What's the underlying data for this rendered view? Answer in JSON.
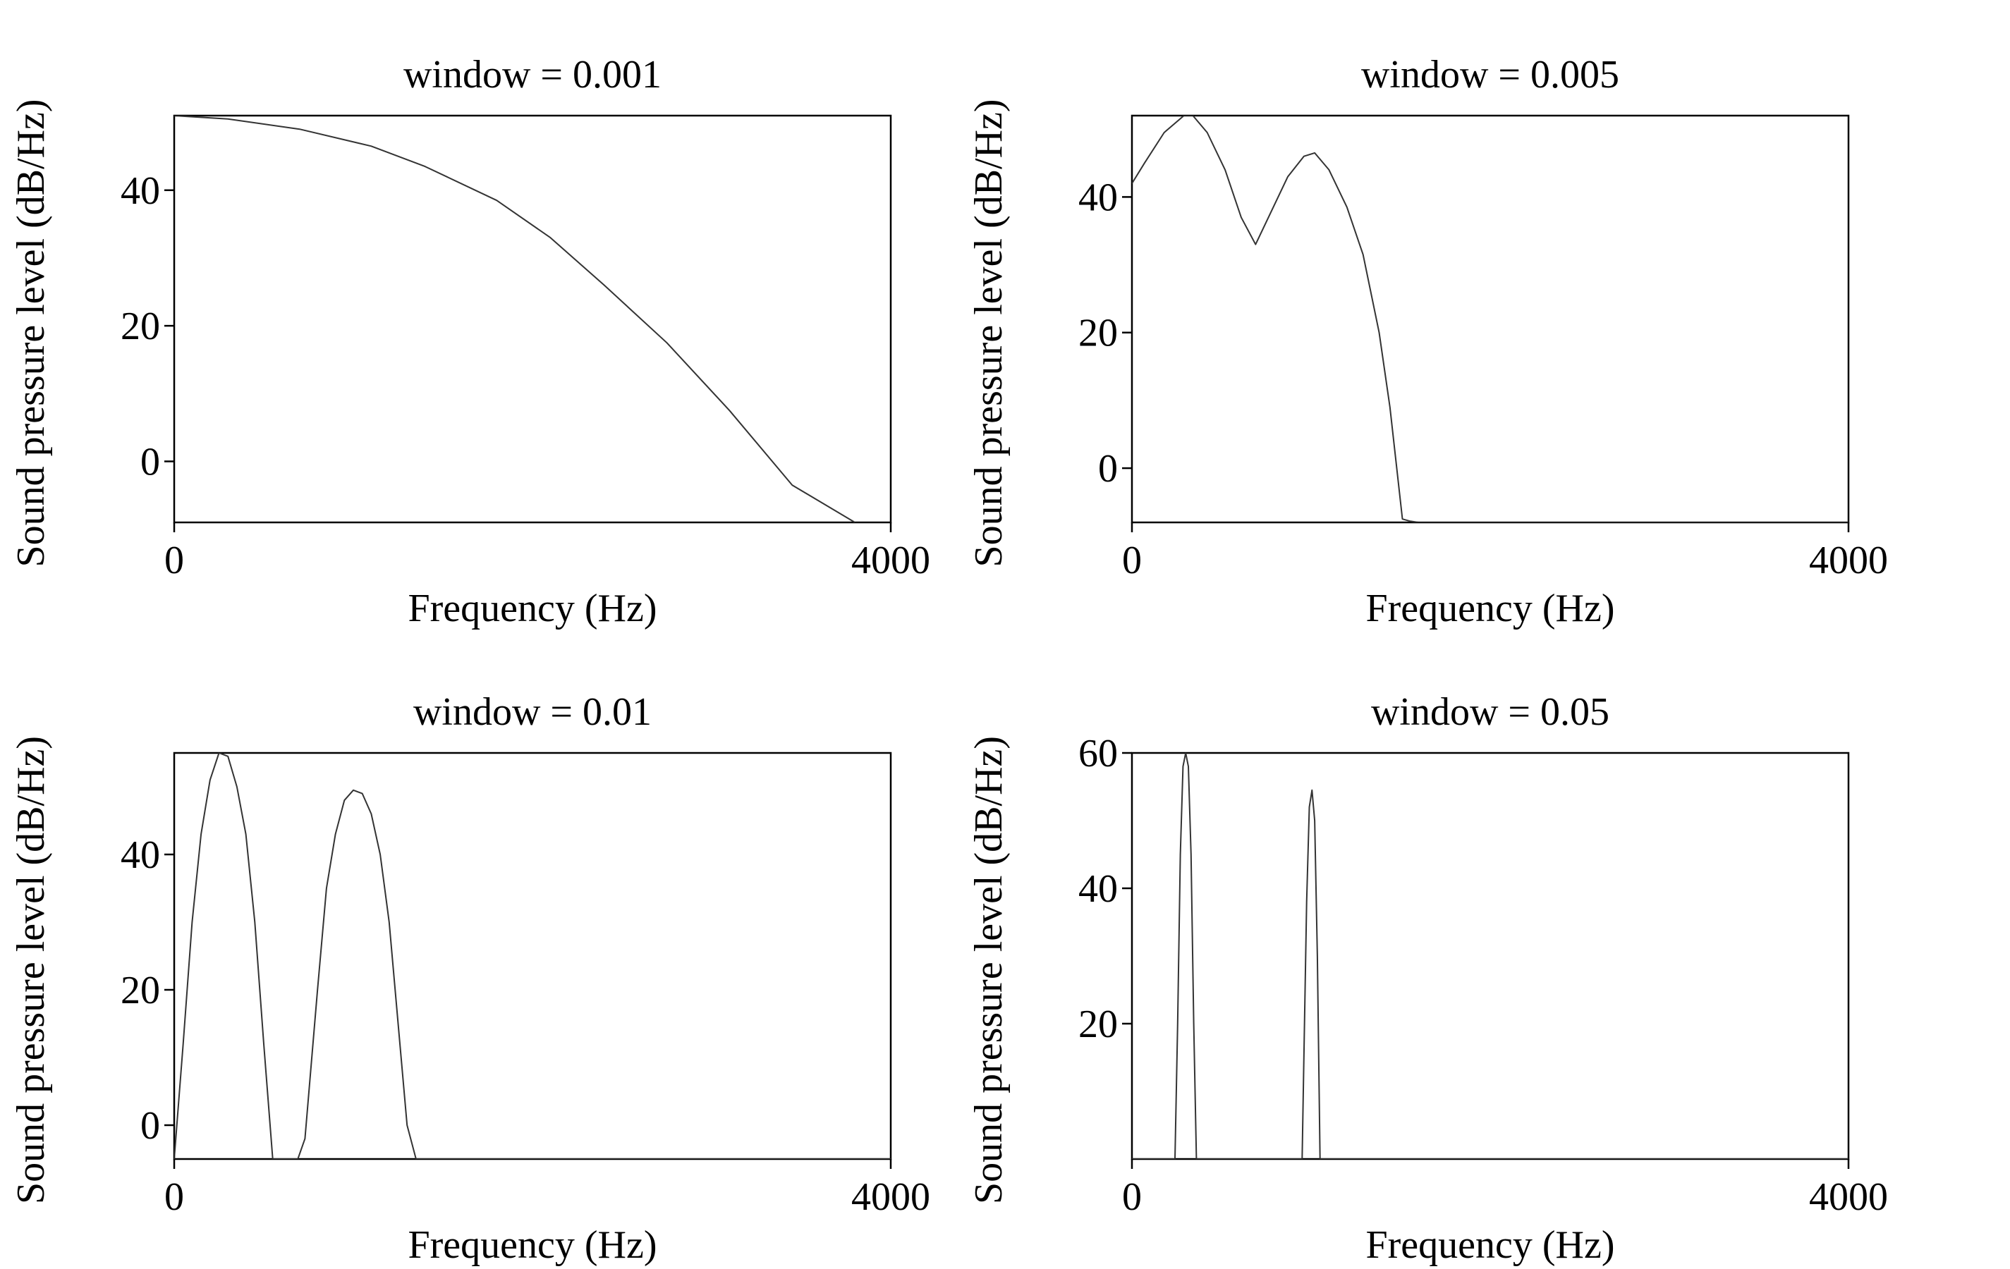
{
  "chart_data": [
    {
      "type": "line",
      "title": "window = 0.001",
      "xlabel": "Frequency (Hz)",
      "ylabel": "Sound pressure level (dB/Hz)",
      "xlim": [
        0,
        4000
      ],
      "ylim": [
        -9,
        51
      ],
      "xticks": [
        0,
        4000
      ],
      "yticks": [
        0,
        20,
        40
      ],
      "grid": false,
      "series": [
        {
          "x": [
            0,
            300,
            700,
            1100,
            1400,
            1800,
            2100,
            2400,
            2750,
            3100,
            3450,
            3800
          ],
          "y": [
            51,
            50.5,
            49,
            46.5,
            43.5,
            38.5,
            33,
            26,
            17.5,
            7.5,
            -3.5,
            -9
          ]
        }
      ]
    },
    {
      "type": "line",
      "title": "window = 0.005",
      "xlabel": "Frequency (Hz)",
      "ylabel": "Sound pressure level (dB/Hz)",
      "xlim": [
        0,
        4000
      ],
      "ylim": [
        -8,
        52
      ],
      "xticks": [
        0,
        4000
      ],
      "yticks": [
        0,
        20,
        40
      ],
      "grid": false,
      "series": [
        {
          "x": [
            0,
            70,
            180,
            290,
            340,
            420,
            520,
            610,
            690,
            870,
            960,
            1020,
            1100,
            1200,
            1290,
            1380,
            1440,
            1510,
            1550,
            1600,
            2000,
            4000
          ],
          "y": [
            42,
            45,
            49.5,
            52,
            52,
            49.5,
            44,
            37,
            33,
            43,
            46,
            46.5,
            44,
            38.5,
            31.5,
            20,
            9,
            -7.5,
            -7.8,
            -8,
            -8,
            -8
          ]
        }
      ]
    },
    {
      "type": "line",
      "title": "window = 0.01",
      "xlabel": "Frequency (Hz)",
      "ylabel": "Sound pressure level (dB/Hz)",
      "xlim": [
        0,
        4000
      ],
      "ylim": [
        -5,
        55
      ],
      "xticks": [
        0,
        4000
      ],
      "yticks": [
        0,
        20,
        40
      ],
      "grid": false,
      "series": [
        {
          "x": [
            0,
            50,
            100,
            150,
            200,
            250,
            300,
            350,
            400,
            450,
            500,
            550,
            600,
            690,
            730,
            800,
            850,
            900,
            950,
            1000,
            1050,
            1100,
            1150,
            1200,
            1250,
            1300,
            1350,
            4000
          ],
          "y": [
            -5,
            12,
            30,
            43,
            51,
            55,
            54.5,
            50,
            43,
            30,
            12,
            -5,
            -5,
            -5,
            -2,
            20,
            35,
            43,
            48,
            49.5,
            49,
            46,
            40,
            30,
            15,
            0,
            -5,
            -5
          ]
        }
      ]
    },
    {
      "type": "line",
      "title": "window = 0.05",
      "xlabel": "Frequency (Hz)",
      "ylabel": "Sound pressure level (dB/Hz)",
      "xlim": [
        0,
        4000
      ],
      "ylim": [
        0,
        60
      ],
      "xticks": [
        0,
        4000
      ],
      "yticks": [
        20,
        40,
        60
      ],
      "grid": false,
      "series": [
        {
          "x": [
            0,
            240,
            255,
            270,
            285,
            300,
            315,
            330,
            345,
            360,
            950,
            960,
            975,
            990,
            1005,
            1020,
            1035,
            1050,
            4000
          ],
          "y": [
            0,
            0,
            20,
            45,
            58,
            60,
            58,
            45,
            20,
            0,
            0,
            15,
            38,
            52,
            54.5,
            50,
            30,
            0,
            0
          ]
        }
      ]
    }
  ]
}
